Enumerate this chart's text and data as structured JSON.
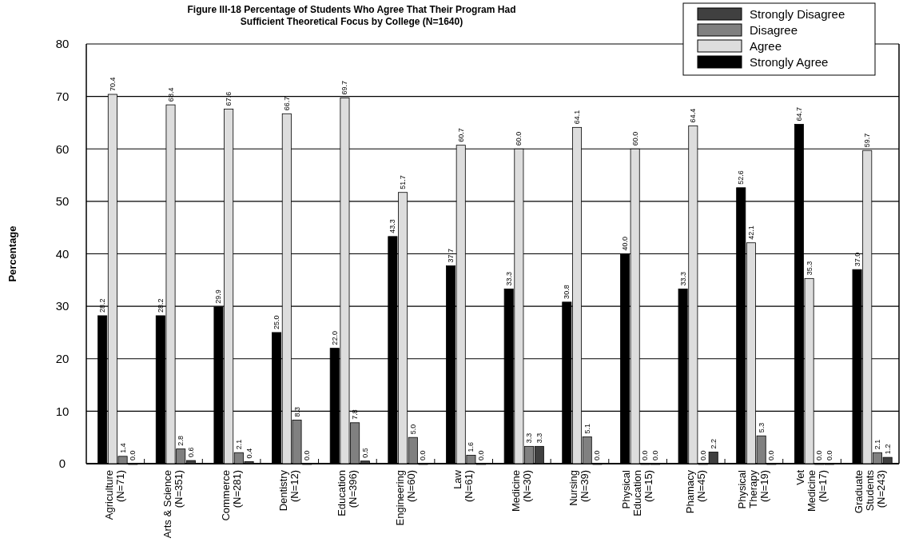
{
  "chart_data": {
    "type": "bar",
    "title": "Figure III-18  Percentage of Students Who Agree That Their Program Had\nSufficient Theoretical Focus by College (N=1640)",
    "ylabel": "Percentage",
    "categories": [
      "Agriculture\n(N=71)",
      "Arts & Science\n(N=351)",
      "Commerce\n(N=281)",
      "Dentistry\n(N=12)",
      "Education\n(N=396)",
      "Engineering\n(N=60)",
      "Law\n(N=61)",
      "Medicine\n(N=30)",
      "Nursing\n(N=39)",
      "Physical\nEducation\n(N=15)",
      "Phamacy\n(N=45)",
      "Physical\nTherapy\n(N=19)",
      "Vet\nMedicine\n(N=17)",
      "Graduate\nStudents\n(N=243)"
    ],
    "series": [
      {
        "name": "Strongly Agree",
        "color": "#000000",
        "values": [
          28.2,
          28.2,
          29.9,
          25.0,
          22.0,
          43.3,
          37.7,
          33.3,
          30.8,
          40.0,
          33.3,
          52.6,
          64.7,
          37.0
        ],
        "value_labels": [
          "28.2",
          "28.2",
          "29.9",
          "25.0",
          "22.0",
          "43.3",
          "37.7",
          "33.3",
          "30.8",
          "40.0",
          "33.3",
          "52.6",
          "64.7",
          "37.0"
        ]
      },
      {
        "name": "Agree",
        "color": "#dddddd",
        "values": [
          70.4,
          68.4,
          67.6,
          66.7,
          69.7,
          51.7,
          60.7,
          60.0,
          64.1,
          60.0,
          64.4,
          42.1,
          35.3,
          59.7
        ],
        "value_labels": [
          "70.4",
          "68.4",
          "67.6",
          "66.7",
          "69.7",
          "51.7",
          "60.7",
          "60.0",
          "64.1",
          "60.0",
          "64.4",
          "42.1",
          "35.3",
          "59.7"
        ]
      },
      {
        "name": "Disagree",
        "color": "#808080",
        "values": [
          1.4,
          2.8,
          2.1,
          8.3,
          7.8,
          5.0,
          1.6,
          3.3,
          5.1,
          0.0,
          0.0,
          5.3,
          0.0,
          2.1
        ],
        "value_labels": [
          "1.4",
          "2.8",
          "2.1",
          "8.3",
          "7.8",
          "5.0",
          "1.6",
          "3.3",
          "5.1",
          "0.0",
          "0.0",
          "5.3",
          "0.0",
          "2.1"
        ]
      },
      {
        "name": "Strongly Disagree",
        "color": "#404040",
        "values": [
          0.0,
          0.6,
          0.4,
          0.0,
          0.5,
          0.0,
          0.0,
          3.3,
          0.0,
          0.0,
          2.2,
          0.0,
          0.0,
          1.2
        ],
        "value_labels": [
          "0.0",
          "0.6",
          "0.4",
          "0.0",
          "0.5",
          "0.0",
          "0.0",
          "3.3",
          "0.0",
          "0.0",
          "2.2",
          "0.0",
          "0.0",
          "1.2"
        ]
      }
    ],
    "ylim": [
      0,
      80
    ],
    "yticks": [
      0,
      10,
      20,
      30,
      40,
      50,
      60,
      70,
      80
    ],
    "grid": "y",
    "legend": "top right"
  }
}
